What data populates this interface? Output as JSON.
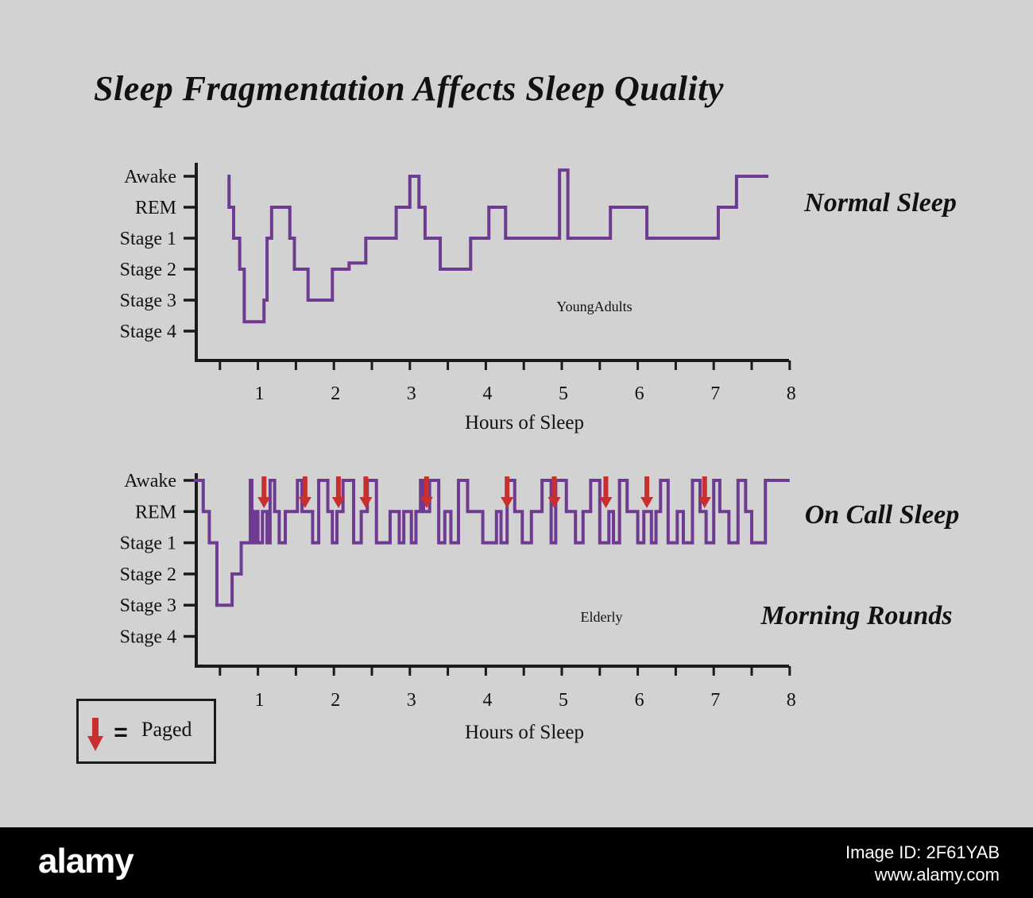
{
  "title": "Sleep Fragmentation Affects Sleep Quality",
  "legend": {
    "label": "Paged",
    "equals": "="
  },
  "footer": {
    "logo": "alamy",
    "image_id": "Image ID: 2F61YAB",
    "site": "www.alamy.com"
  },
  "colors": {
    "hypnogram": "#6f3a91",
    "page_arrow": "#c8302f",
    "axis": "#1a1a1a",
    "background": "#d2d2d2"
  },
  "chart_data": [
    {
      "type": "line",
      "subtitle": "Normal Sleep",
      "annotation": "YoungAdults",
      "xlabel": "Hours of Sleep",
      "xticks": [
        "1",
        "2",
        "3",
        "4",
        "5",
        "6",
        "7",
        "8"
      ],
      "xlim": [
        0,
        8
      ],
      "yticks": [
        "Awake",
        "REM",
        "Stage 1",
        "Stage 2",
        "Stage 3",
        "Stage 4"
      ],
      "ylim": [
        -0.5,
        5.3
      ],
      "series": [
        {
          "x": [
            0.6,
            0.62,
            0.68,
            0.76,
            0.82,
            1.08,
            1.12,
            1.18,
            1.22,
            1.42,
            1.48,
            1.64,
            1.66,
            1.92,
            1.98,
            2.2,
            2.2,
            2.42,
            2.46,
            2.82,
            2.84,
            3.0,
            3.02,
            3.12,
            3.2,
            3.24,
            3.4,
            3.42,
            3.8,
            3.84,
            4.04,
            4.06,
            4.26,
            4.3,
            4.58,
            4.62,
            4.97,
            4.99,
            5.08,
            5.1,
            5.64,
            5.66,
            6.12,
            6.14,
            7.06,
            7.08,
            7.3,
            7.34,
            7.72
          ],
          "y": [
            5.0,
            4.0,
            3.0,
            2.0,
            0.3,
            1.0,
            3.0,
            4.0,
            4.0,
            3.0,
            2.0,
            2.0,
            1.0,
            1.0,
            2.0,
            2.0,
            2.2,
            3.0,
            3.0,
            4.0,
            4.0,
            5.0,
            5.0,
            4.0,
            3.0,
            3.0,
            2.0,
            2.0,
            3.0,
            3.0,
            4.0,
            4.0,
            3.0,
            3.0,
            3.0,
            3.0,
            5.2,
            5.2,
            3.0,
            3.0,
            4.0,
            4.0,
            3.0,
            3.0,
            4.0,
            4.0,
            5.0,
            5.0,
            5.0
          ]
        }
      ]
    },
    {
      "type": "line",
      "subtitle": "On Call Sleep",
      "subtitle2": "Morning Rounds",
      "annotation": "Elderly",
      "xlabel": "Hours of Sleep",
      "xticks": [
        "1",
        "2",
        "3",
        "4",
        "5",
        "6",
        "7",
        "8"
      ],
      "xlim": [
        0,
        8
      ],
      "yticks": [
        "Awake",
        "REM",
        "Stage 1",
        "Stage 2",
        "Stage 3",
        "Stage 4"
      ],
      "ylim": [
        -0.5,
        5.3
      ],
      "series": [
        {
          "x": [
            0.15,
            0.28,
            0.36,
            0.46,
            0.66,
            0.78,
            0.9,
            0.92,
            0.96,
            1.0,
            1.06,
            1.12,
            1.16,
            1.22,
            1.28,
            1.36,
            1.52,
            1.58,
            1.72,
            1.8,
            1.92,
            1.98,
            2.04,
            2.12,
            2.26,
            2.36,
            2.44,
            2.56,
            2.74,
            2.86,
            2.92,
            3.02,
            3.08,
            3.14,
            3.18,
            3.26,
            3.38,
            3.46,
            3.54,
            3.64,
            3.76,
            3.96,
            4.14,
            4.2,
            4.28,
            4.38,
            4.48,
            4.6,
            4.74,
            4.86,
            4.92,
            5.06,
            5.18,
            5.28,
            5.38,
            5.5,
            5.62,
            5.68,
            5.76,
            5.86,
            6.0,
            6.08,
            6.18,
            6.24,
            6.3,
            6.4,
            6.52,
            6.6,
            6.72,
            6.82,
            6.9,
            7.0,
            7.08,
            7.2,
            7.32,
            7.42,
            7.5,
            7.68,
            8.0
          ],
          "y": [
            5,
            4,
            3,
            1,
            2,
            3,
            5,
            3,
            4,
            3,
            4,
            3,
            5,
            4,
            3,
            4,
            5,
            4,
            3,
            5,
            4,
            3,
            4,
            5,
            3,
            4,
            5,
            3,
            4,
            3,
            4,
            3,
            4,
            5,
            4,
            5,
            3,
            4,
            3,
            5,
            4,
            3,
            4,
            3,
            5,
            4,
            3,
            4,
            5,
            3,
            5,
            4,
            3,
            4,
            5,
            3,
            4,
            3,
            5,
            4,
            3,
            4,
            3,
            4,
            5,
            3,
            4,
            3,
            5,
            4,
            3,
            5,
            4,
            3,
            5,
            4,
            3,
            5,
            5
          ]
        }
      ],
      "paged_at_hours": [
        1.08,
        1.62,
        2.06,
        2.42,
        3.22,
        4.28,
        4.9,
        5.58,
        6.12,
        6.88
      ]
    }
  ]
}
